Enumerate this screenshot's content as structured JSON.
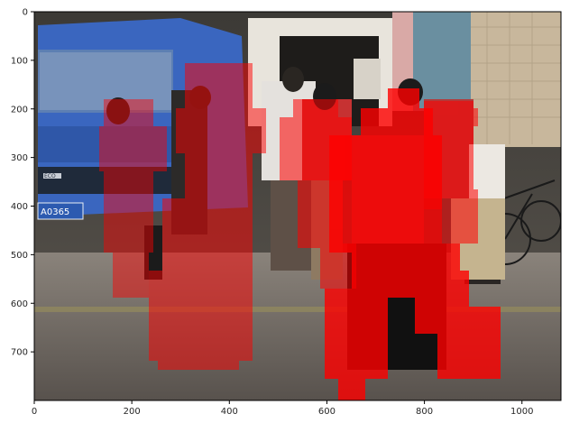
{
  "figure": {
    "x_axis": {
      "range": [
        0,
        1080
      ],
      "ticks": [
        {
          "value": 0,
          "label": "0"
        },
        {
          "value": 200,
          "label": "200"
        },
        {
          "value": 400,
          "label": "400"
        },
        {
          "value": 600,
          "label": "600"
        },
        {
          "value": 800,
          "label": "800"
        },
        {
          "value": 1000,
          "label": "1000"
        }
      ]
    },
    "y_axis": {
      "range": [
        0,
        800
      ],
      "inverted": true,
      "ticks": [
        {
          "value": 0,
          "label": "0"
        },
        {
          "value": 100,
          "label": "100"
        },
        {
          "value": 200,
          "label": "200"
        },
        {
          "value": 300,
          "label": "300"
        },
        {
          "value": 400,
          "label": "400"
        },
        {
          "value": 500,
          "label": "500"
        },
        {
          "value": 600,
          "label": "600"
        },
        {
          "value": 700,
          "label": "700"
        }
      ]
    },
    "photo": {
      "truck_plate": "A0365",
      "truck_badge": "ECO"
    },
    "overlay": {
      "color": "#ff0000",
      "description_colors": {
        "sky_wall": "#6f7a8a",
        "truck": "#3561b8",
        "road": "#6b6560",
        "building": "#c9b9a0"
      }
    }
  }
}
